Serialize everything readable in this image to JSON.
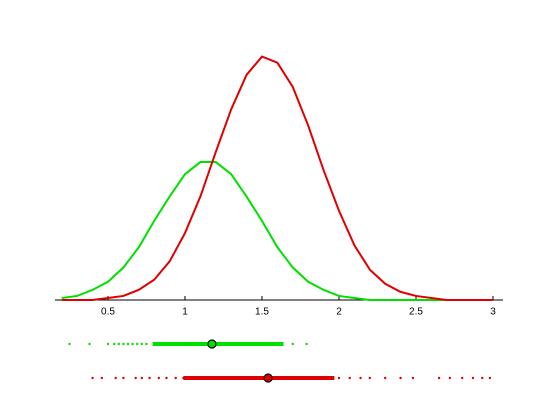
{
  "chart_data": {
    "type": "line",
    "x": [
      0.2,
      0.3,
      0.4,
      0.5,
      0.6,
      0.7,
      0.8,
      0.9,
      1.0,
      1.1,
      1.2,
      1.3,
      1.4,
      1.5,
      1.6,
      1.7,
      1.8,
      1.9,
      2.0,
      2.1,
      2.2,
      2.3,
      2.4,
      2.5,
      2.6,
      2.7,
      2.8,
      2.9,
      3.0
    ],
    "xlim": [
      0.156,
      3.065
    ],
    "ylim": [
      0,
      1.4
    ],
    "xticks": [
      0.5,
      1,
      1.5,
      2,
      2.5,
      3
    ],
    "series": [
      {
        "color": "#00e000",
        "values": [
          0.01,
          0.02,
          0.05,
          0.09,
          0.16,
          0.26,
          0.39,
          0.51,
          0.62,
          0.68,
          0.68,
          0.62,
          0.51,
          0.39,
          0.26,
          0.16,
          0.09,
          0.05,
          0.02,
          0.01,
          0,
          0,
          0,
          0,
          0,
          0,
          0,
          0,
          0
        ],
        "samples": [
          0.25,
          0.38,
          0.5,
          0.54,
          0.57,
          0.6,
          0.63,
          0.66,
          0.69,
          0.72,
          0.75,
          0.8,
          0.84,
          0.88,
          0.93,
          0.98,
          1.03,
          1.08,
          1.14,
          1.2,
          1.27,
          1.34,
          1.42,
          1.5,
          1.56,
          1.62,
          1.7,
          1.79
        ],
        "mean": 1.175,
        "interval": [
          0.79,
          1.64
        ]
      },
      {
        "color": "#e00000",
        "values": [
          0,
          0,
          0,
          0.01,
          0.02,
          0.05,
          0.1,
          0.19,
          0.33,
          0.51,
          0.73,
          0.94,
          1.11,
          1.2,
          1.17,
          1.05,
          0.86,
          0.64,
          0.44,
          0.27,
          0.15,
          0.08,
          0.04,
          0.02,
          0.01,
          0,
          0,
          0,
          0
        ],
        "samples": [
          0.4,
          0.46,
          0.55,
          0.6,
          0.68,
          0.72,
          0.77,
          0.83,
          0.88,
          0.94,
          0.99,
          1.05,
          1.12,
          1.2,
          1.3,
          1.4,
          1.5,
          1.6,
          1.7,
          1.8,
          1.9,
          2.0,
          2.07,
          2.14,
          2.2,
          2.3,
          2.4,
          2.48,
          2.65,
          2.72,
          2.8,
          2.87,
          2.93,
          2.98
        ],
        "mean": 1.54,
        "interval": [
          0.99,
          1.97
        ]
      }
    ]
  }
}
